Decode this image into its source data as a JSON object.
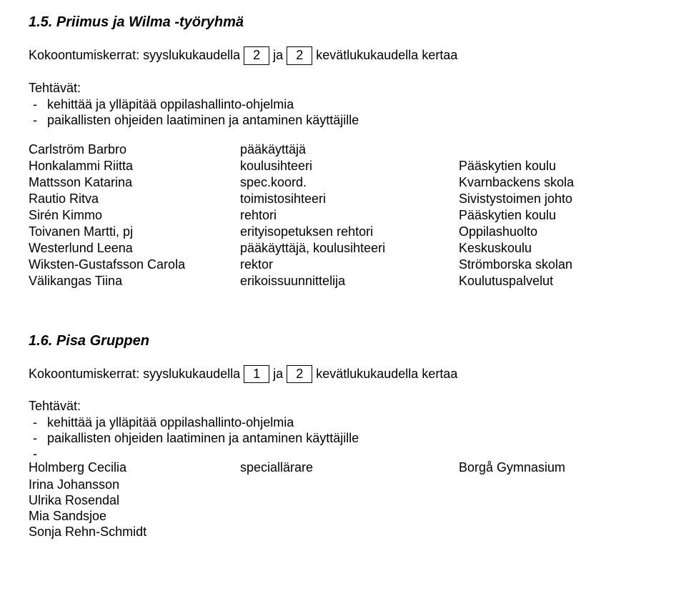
{
  "section1": {
    "heading": "1.5. Priimus ja Wilma -työryhmä",
    "meeting_prefix": "Kokoontumiskerrat: syyslukukaudella",
    "meeting_box1": "2",
    "meeting_mid": "ja",
    "meeting_box2": "2",
    "meeting_suffix": "kevätlukukaudella kertaa",
    "tasks_label": "Tehtävät:",
    "tasks": [
      "kehittää ja ylläpitää oppilashallinto-ohjelmia",
      "paikallisten ohjeiden laatiminen ja antaminen käyttäjille"
    ],
    "members": [
      {
        "name": "Carlström Barbro",
        "role": "pääkäyttäjä",
        "org": ""
      },
      {
        "name": "Honkalammi Riitta",
        "role": "koulusihteeri",
        "org": "Pääskytien koulu"
      },
      {
        "name": "Mattsson Katarina",
        "role": "spec.koord.",
        "org": "Kvarnbackens skola"
      },
      {
        "name": "Rautio Ritva",
        "role": "toimistosihteeri",
        "org": "Sivistystoimen johto"
      },
      {
        "name": "Sirén Kimmo",
        "role": "rehtori",
        "org": "Pääskytien koulu"
      },
      {
        "name": "Toivanen Martti, pj",
        "role": "erityisopetuksen rehtori",
        "org": "Oppilashuolto"
      },
      {
        "name": "Westerlund Leena",
        "role": "pääkäyttäjä, koulusihteeri",
        "org": "Keskuskoulu"
      },
      {
        "name": "Wiksten-Gustafsson Carola",
        "role": "rektor",
        "org": "Strömborska skolan"
      },
      {
        "name": "Välikangas Tiina",
        "role": "erikoissuunnittelija",
        "org": "Koulutuspalvelut"
      }
    ]
  },
  "section2": {
    "heading": "1.6. Pisa Gruppen",
    "meeting_prefix": "Kokoontumiskerrat: syyslukukaudella",
    "meeting_box1": "1",
    "meeting_mid": "ja",
    "meeting_box2": "2",
    "meeting_suffix": "kevätlukukaudella kertaa",
    "tasks_label": "Tehtävät:",
    "tasks": [
      "kehittää ja ylläpitää oppilashallinto-ohjelmia",
      "paikallisten ohjeiden laatiminen ja antaminen käyttäjille",
      ""
    ],
    "row1": {
      "name": "Holmberg Cecilia",
      "role": "speciallärare",
      "org": "Borgå Gymnasium"
    },
    "rest": [
      "Irina Johansson",
      "Ulrika Rosendal",
      "Mia Sandsjoe",
      "Sonja Rehn-Schmidt"
    ]
  }
}
